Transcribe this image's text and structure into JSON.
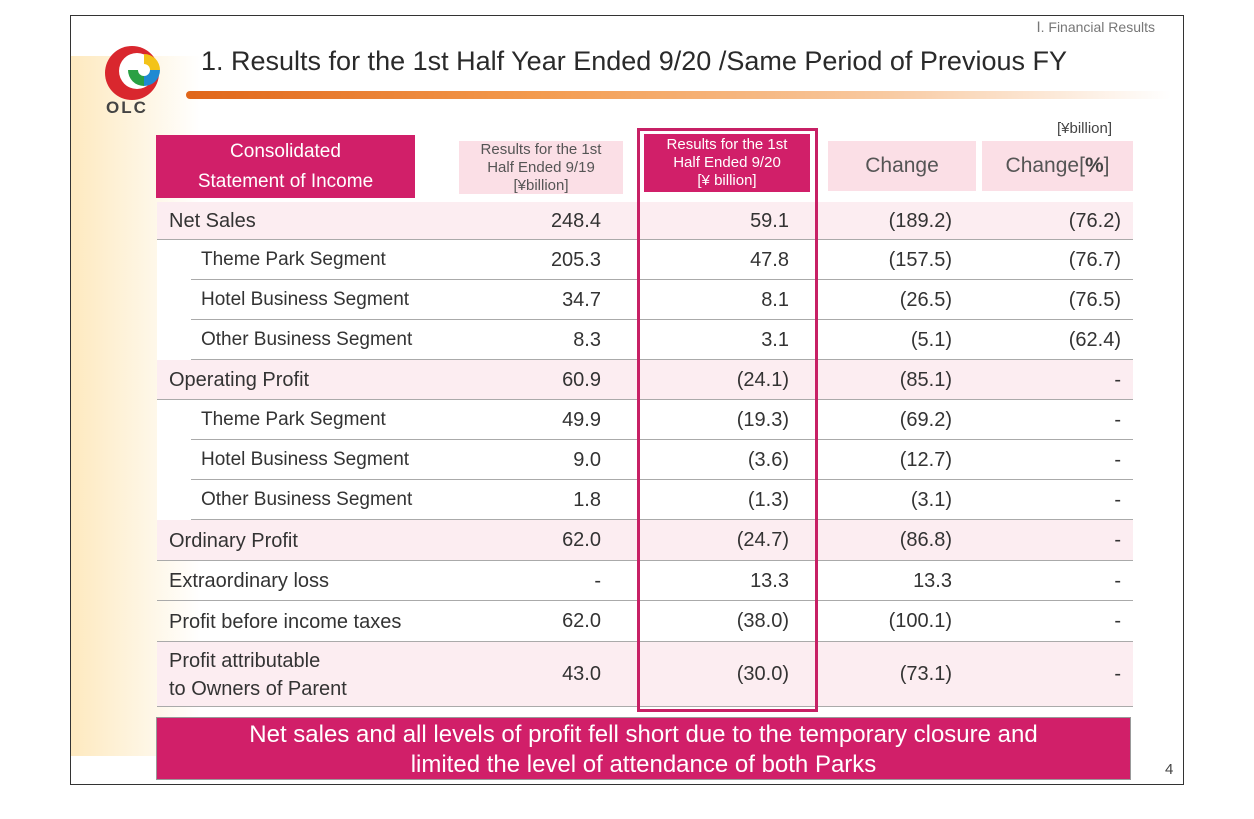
{
  "header": {
    "section": "Ⅰ. Financial Results",
    "title": "1. Results for the 1st Half Year Ended 9/20 /Same Period of Previous FY",
    "logo_text": "OLC",
    "unit": "[¥billion]"
  },
  "columns": {
    "main_line1": "Consolidated",
    "main_line2": "Statement of Income",
    "prev_line1": "Results for the 1st",
    "prev_line2": "Half Ended 9/19",
    "prev_line3": "[¥billion]",
    "curr_line1": "Results for the 1st",
    "curr_line2": "Half Ended 9/20",
    "curr_line3": "[¥ billion]",
    "change": "Change",
    "change_pct_prefix": "Change[",
    "change_pct_symbol": "%",
    "change_pct_suffix": "]"
  },
  "rows": [
    {
      "label": "Net Sales",
      "prev": "248.4",
      "curr": "59.1",
      "change": "(189.2)",
      "pct": "(76.2)"
    },
    {
      "label": "Theme Park Segment",
      "prev": "205.3",
      "curr": "47.8",
      "change": "(157.5)",
      "pct": "(76.7)"
    },
    {
      "label": "Hotel Business Segment",
      "prev": "34.7",
      "curr": "8.1",
      "change": "(26.5)",
      "pct": "(76.5)"
    },
    {
      "label": "Other Business Segment",
      "prev": "8.3",
      "curr": "3.1",
      "change": "(5.1)",
      "pct": "(62.4)"
    },
    {
      "label": "Operating Profit",
      "prev": "60.9",
      "curr": "(24.1)",
      "change": "(85.1)",
      "pct": "-"
    },
    {
      "label": "Theme Park Segment",
      "prev": "49.9",
      "curr": "(19.3)",
      "change": "(69.2)",
      "pct": "-"
    },
    {
      "label": "Hotel Business Segment",
      "prev": "9.0",
      "curr": "(3.6)",
      "change": "(12.7)",
      "pct": "-"
    },
    {
      "label": "Other Business Segment",
      "prev": "1.8",
      "curr": "(1.3)",
      "change": "(3.1)",
      "pct": "-"
    },
    {
      "label": "Ordinary Profit",
      "prev": "62.0",
      "curr": "(24.7)",
      "change": "(86.8)",
      "pct": "-"
    },
    {
      "label": "Extraordinary loss",
      "prev": "-",
      "curr": "13.3",
      "change": "13.3",
      "pct": "-"
    },
    {
      "label": "Profit before income taxes",
      "prev": "62.0",
      "curr": "(38.0)",
      "change": "(100.1)",
      "pct": "-"
    },
    {
      "label_line1": "Profit attributable",
      "label_line2": "to Owners of Parent",
      "prev": "43.0",
      "curr": "(30.0)",
      "change": "(73.1)",
      "pct": "-"
    }
  ],
  "footer": {
    "summary_line1": "Net sales and all levels of profit fell short due to the temporary closure and",
    "summary_line2": "limited the level of attendance of both Parks",
    "page_number": "4"
  },
  "colors": {
    "brand_magenta": "#d11f69",
    "light_pink": "#fbdfe6",
    "row_pink": "#fcedf1",
    "title_bar_orange": "#e0661a",
    "logo_red": "#d9272e",
    "logo_green": "#2aa043",
    "logo_blue": "#1f8ad2",
    "logo_yellow": "#f3c318"
  }
}
